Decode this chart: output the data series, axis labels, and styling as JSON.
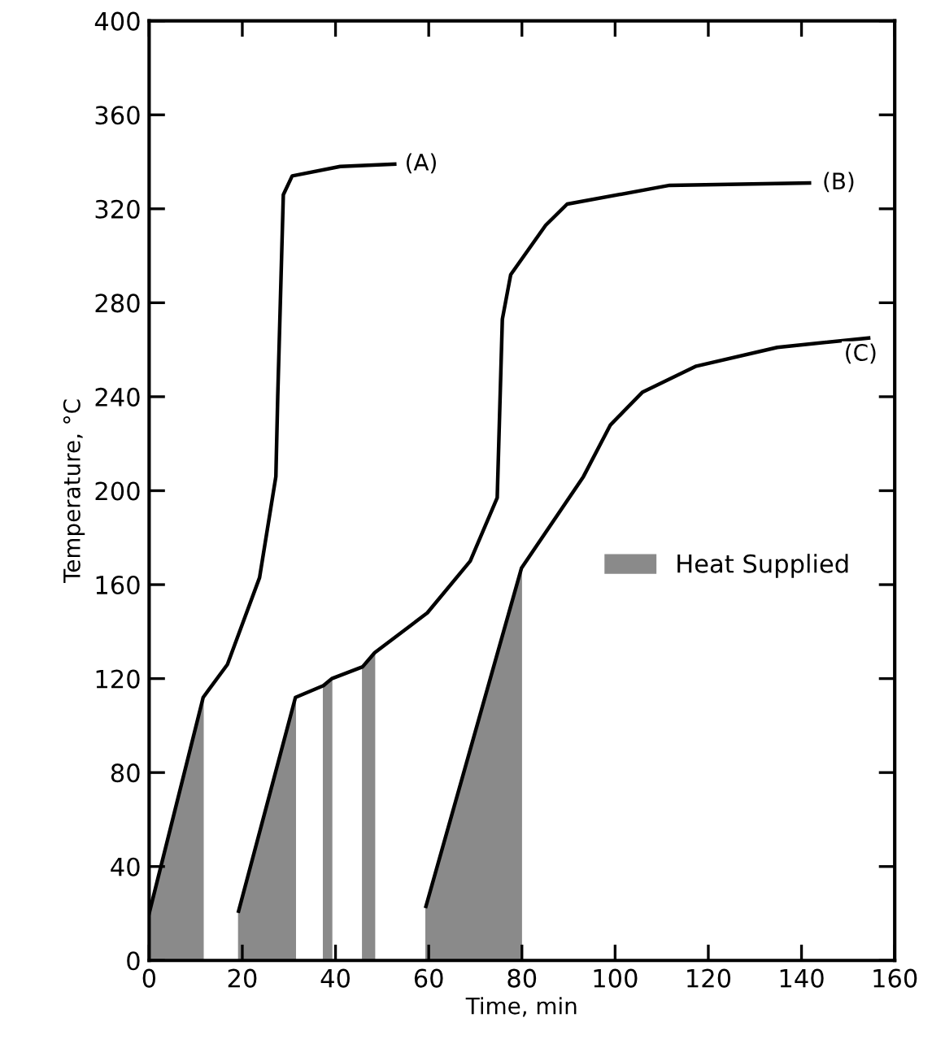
{
  "chart_data": {
    "type": "line",
    "xlabel": "Time, min",
    "ylabel": "Temperature, °C",
    "xlim": [
      0,
      160
    ],
    "ylim": [
      0,
      400
    ],
    "xticks": [
      0,
      20,
      40,
      60,
      80,
      100,
      120,
      140,
      160
    ],
    "yticks": [
      0,
      40,
      80,
      120,
      160,
      200,
      240,
      280,
      320,
      360,
      400
    ],
    "grid": false,
    "legend": "right",
    "marker": "none",
    "line_style": "solid",
    "series": [
      {
        "type": "area",
        "name": "Heat Supplied",
        "color": "#8a8a8a",
        "x": [
          0,
          11.6,
          null,
          19.2,
          31.4,
          null,
          37.4,
          39.2,
          null,
          45.8,
          48.4,
          null,
          59.4,
          79.9
        ],
        "values": [
          20,
          112,
          null,
          21,
          112,
          null,
          117,
          120,
          null,
          125,
          131,
          null,
          23,
          167
        ]
      },
      {
        "type": "line",
        "color": "#000000",
        "x": [
          0,
          11.6,
          16.8,
          23.7,
          27.2,
          27.6,
          28.8,
          30.7,
          41,
          52.7
        ],
        "values": [
          20,
          112,
          126,
          163,
          206,
          240,
          326,
          334,
          338,
          339
        ]
      },
      {
        "type": "line",
        "color": "#000000",
        "x": [
          19.2,
          31.4,
          37.4,
          39.2,
          45.8,
          48.4,
          59.7,
          68.9,
          74.7,
          75.8,
          77.6,
          85.1,
          89.7,
          111.7,
          141.7
        ],
        "values": [
          21,
          112,
          117,
          120,
          125,
          131,
          148,
          170,
          197,
          273,
          292,
          313,
          322,
          330,
          331
        ]
      },
      {
        "type": "line",
        "color": "#000000",
        "x": [
          59.4,
          79.9,
          93.2,
          99,
          105.9,
          117.4,
          134.8,
          154.4
        ],
        "values": [
          23,
          167,
          206,
          228,
          242,
          253,
          261,
          265
        ]
      }
    ],
    "annotations": [
      {
        "text": "(A)",
        "x": 58.4,
        "y": 339
      },
      {
        "text": "(B)",
        "x": 148,
        "y": 331
      },
      {
        "text": "(C)",
        "x": 152.7,
        "y": 258
      }
    ]
  }
}
